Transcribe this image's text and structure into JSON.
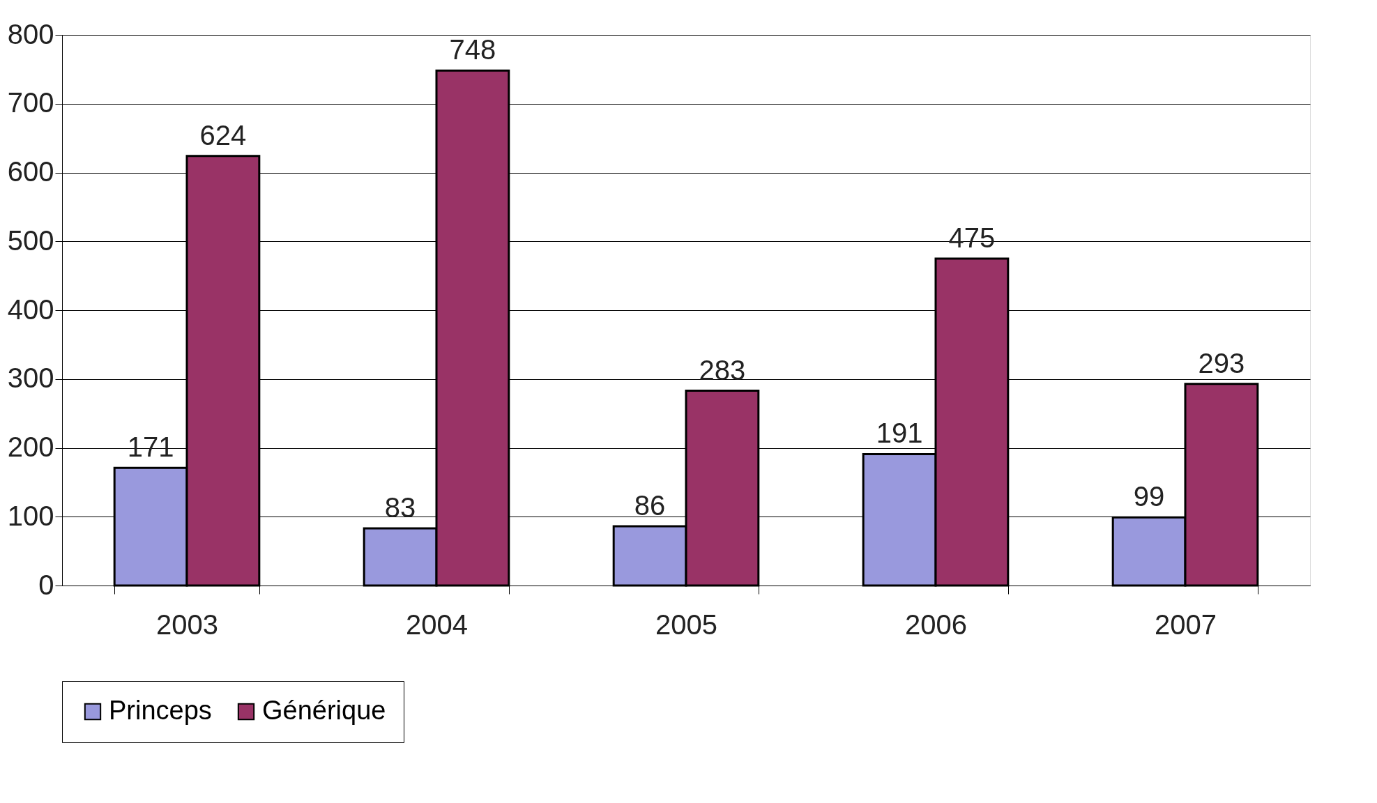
{
  "chart_data": {
    "type": "bar",
    "categories": [
      "2003",
      "2004",
      "2005",
      "2006",
      "2007"
    ],
    "series": [
      {
        "name": "Princeps",
        "color": "#9999dd",
        "values": [
          171,
          83,
          86,
          191,
          99
        ]
      },
      {
        "name": "Générique",
        "color": "#993366",
        "values": [
          624,
          748,
          283,
          475,
          293
        ]
      }
    ],
    "ylim": [
      0,
      800
    ],
    "yticks": [
      0,
      100,
      200,
      300,
      400,
      500,
      600,
      700,
      800
    ],
    "grid": "y",
    "legend": "bottom",
    "data_labels": true
  }
}
